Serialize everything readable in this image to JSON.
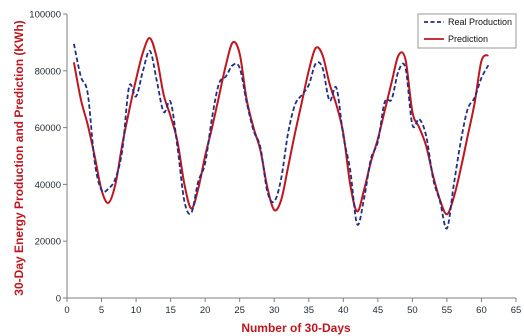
{
  "colors": {
    "real": "#1f2f86",
    "prediction": "#c0161f",
    "axis": "#7f7f7f",
    "title": "#c0161f"
  },
  "chart_data": {
    "type": "line",
    "xlabel": "Number of 30-Days",
    "ylabel": "30-Day Energy Production and Prediction (KWh)",
    "xlim": [
      0,
      65
    ],
    "ylim": [
      0,
      100000
    ],
    "x_ticks": [
      0,
      5,
      10,
      15,
      20,
      25,
      30,
      35,
      40,
      45,
      50,
      55,
      60,
      65
    ],
    "x_tick_labels": [
      "0",
      "5",
      "10",
      "15",
      "20",
      "25",
      "30",
      "35",
      "40",
      "45",
      "50",
      "55",
      "60",
      "65"
    ],
    "y_ticks": [
      0,
      20000,
      40000,
      60000,
      80000,
      100000
    ],
    "y_tick_labels": [
      "0",
      "20000",
      "40000",
      "60000",
      "80000",
      "100000"
    ],
    "grid": false,
    "legend_position": "top-right",
    "series": [
      {
        "name": "Real Production",
        "style": "dashed",
        "x": [
          1,
          2,
          3,
          4,
          5,
          6,
          7,
          8,
          9,
          10,
          11,
          12,
          13,
          14,
          15,
          16,
          17,
          18,
          19,
          20,
          21,
          22,
          23,
          24,
          25,
          26,
          27,
          28,
          29,
          30,
          31,
          32,
          33,
          34,
          35,
          36,
          37,
          38,
          39,
          40,
          41,
          42,
          43,
          44,
          45,
          46,
          47,
          48,
          49,
          50,
          51,
          52,
          53,
          54,
          55,
          56,
          57,
          58,
          59,
          60,
          61
        ],
        "values": [
          89500,
          78000,
          72000,
          48000,
          38000,
          38500,
          42000,
          52000,
          74500,
          71000,
          80000,
          87000,
          76500,
          65500,
          69000,
          53000,
          34000,
          30000,
          41000,
          47500,
          63500,
          75500,
          78000,
          82000,
          81000,
          69000,
          59000,
          53000,
          37500,
          34000,
          42000,
          58000,
          68000,
          71500,
          75000,
          82500,
          81000,
          69500,
          74000,
          57000,
          45000,
          26000,
          35000,
          49000,
          55000,
          69000,
          70000,
          80000,
          81000,
          61000,
          63000,
          57000,
          42000,
          34000,
          24500,
          40000,
          55000,
          66500,
          70500,
          77500,
          82000
        ]
      },
      {
        "name": "Prediction",
        "style": "solid",
        "x": [
          1,
          2,
          3,
          4,
          5,
          6,
          7,
          8,
          9,
          10,
          11,
          12,
          13,
          14,
          15,
          16,
          17,
          18,
          19,
          20,
          21,
          22,
          23,
          24,
          25,
          26,
          27,
          28,
          29,
          30,
          31,
          32,
          33,
          34,
          35,
          36,
          37,
          38,
          39,
          40,
          41,
          42,
          43,
          44,
          45,
          46,
          47,
          48,
          49,
          50,
          51,
          52,
          53,
          54,
          55,
          56,
          57,
          58,
          59,
          60,
          61
        ],
        "values": [
          83000,
          70000,
          61000,
          50000,
          38000,
          33500,
          40000,
          54000,
          66000,
          77000,
          86500,
          91500,
          84500,
          71500,
          64000,
          55000,
          40000,
          31500,
          38500,
          50000,
          60000,
          71000,
          82000,
          90000,
          86000,
          70000,
          60000,
          52000,
          39000,
          31000,
          34500,
          46000,
          58000,
          69000,
          80000,
          88000,
          85500,
          75500,
          68000,
          58000,
          40000,
          30500,
          38000,
          48000,
          56000,
          66000,
          76000,
          85500,
          84000,
          65500,
          60000,
          53500,
          43000,
          34500,
          29500,
          35500,
          45500,
          57000,
          68500,
          83500,
          85500
        ]
      }
    ]
  }
}
